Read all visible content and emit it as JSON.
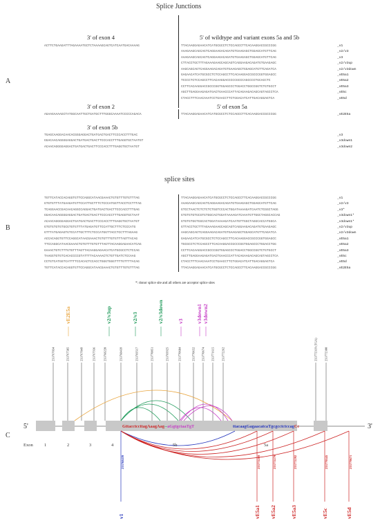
{
  "panelA": {
    "letter": "A",
    "title": "Splice Junctions",
    "h_exon4": "3' of exon 4",
    "h_5prime": "5' of  wildtype and variant exons 5a and 5b",
    "h_exon2": "3' of exon 2",
    "h_exon5a": "5' of exon 5a",
    "h_exon5b": "3' of exon 5b",
    "exon4_seq": "ACTTCTGAAGATTTAGAAAATGCTCTAAAAGCAGTCATCAATGACAAAAG",
    "right_seqs": [
      "TTACAAGGAGAACATCATGCGCCTCTCCAGCCTTCACAAGGACCGCCCGG",
      "AAAGAAGCAGCAGTCAGGAAGACAGATGTGAAGAGCTGGAGCATGTTCAG",
      "AAAGAAGCAGCAGTCAGGAAGACAGATGTGAAGAGCTGGAGCATGTTCAG",
      "CTTACCTGCTTTAGAAAGAAGCAGCAGTCAGGAAGACAGATGTGAAGAGC",
      "AAGCAGCAGTCAGGAAGACAGATGTGAAGAGCTGGAGCATGTTCAGATCA",
      "GAGAACATCATGCGCCTCTCCAGCCTTCACAAGGACCGCCCGGTGGAGCC",
      "TCCCCTCTCCAGCCTTCACAAGGACCCCCGCCCAGCCCCTGCACCTC",
      "CCTTCACAAGGACCGCCCGGTGGAGCCCTGGACCTGGCCGGTCTGTGCCT",
      "AGCTTGAGGAAGAGATGACTGAACCCATTACAGAAGACAGCAGTAGCCTCA",
      "CTACCTTTCAACAAATCCTGAACCTTCTGGACATCATTGACAGGAGTCA"
    ],
    "right_labels": [
      "_v1",
      "_v2/v3",
      "_v3",
      "_v2/v3up",
      "_v2/v3down",
      "_vE5a1",
      "_vE5a2",
      "_vE5a3",
      "_vE5c",
      "_vE5d"
    ],
    "exon2_seq": "AGAAGAAAAGCTATGGCAATTGCTGATGCTTTGGGCAAAATCCCCCAGACA",
    "exon5a_seq": "TTACAAGGAGAACATCATGCGCCTCTCCAGCCTTCACAAGGACCGCCCGG",
    "exon5a_label": "_vE2E5a",
    "exon5b_seqs": [
      "TGAGCAAGGACAACACGGGAGGACTGATGACTGACTTCCCACCTTTGAC",
      "GGACAACAGGGGAGGACTGATGACTGACTTCCCACCTTTGAGGTGCTAATGT",
      "ACAACAGGGGAGGACTGATGACTGACTTCCCACCTTTGAGGTGCTAATGT"
    ],
    "exon5b_labels": [
      "_v3",
      "_v3down1",
      "_v3down2"
    ]
  },
  "panelB": {
    "letter": "B",
    "title": "splice sites",
    "left_seqs": [
      "TGTTCATACCACAGGTGTTCCAGGCATAACGAAACTGTGTTTGTGTTTAG",
      "GTGTGTTTATGAAGATGTTCCATTGCTTTCTCCCATGGTTACCTCCTTTAG",
      "TCAGGAACCGACAACAGGCCAGGACTGATGACTGACTTCCCACCTTTGAG",
      "GGACAACAGGGGAGGACTGATGACTGACTTCCCACCTTTGAGGTGCTAAT",
      "ACAACAGGGGAGGACTGATGACTGACTTCCCACCTTTGAGGTGCTAATGT",
      "GTGTGTGTGTGCGTGTGTTTATGAGATGTTCCATTGCTTTCTCCCATG",
      "GTTTATGAGAGTGTCCATTGCTTTCTCCCATGGTTACCTCCTTTAGAAG",
      "ACCACAGGTGTTCCAGGCATAACGAAACTGTGTTTGTGTTTAGTTACAG",
      "TTCCAGGCATAACGAAACTGTGTTTGTGTTTAGTTACAAGGAGAACATCAG",
      "GAAACTGTCTTTGTGTTTAGTTACAAGGAGAACATCATGCGCCTCTCCAG",
      "TAAGGTGTGTCACACCCCGTATTTTACAAAACTCTGTTGATCTCCAAG",
      "CCTGTCATGGTCATTTTCCACACTCCACCTGGGTGGGTTTTGTTTTACAG",
      "TGTTCATACCACAGGTGTTCCAGGCATAACGAAACTGTGTTTGTGTTTAG"
    ],
    "right_seqs": [
      "TTACAAGGAGAACATCATGCGCCTCTCCAGCCTTCACAAGGACCGCCCGG",
      "AAAGAAGCAGCAGTCAGGAAGACAGATGTGAAGAGCTGGAGCATGTTCAG",
      "GTCCTAACTCTCTCTCTGGTCCCACTGGATAAAAGATCAATCTCGGCTAGG",
      "GTGTGTGTGCGTGTGGCACTGGATAAAAGATCAAATGTTGGCTAGGCACCAG",
      "GTGTGTGGTGGCACTGGATAAAAGATCAATGTTGGCTAGGCACCATGGCA",
      "GTTACCTGCTTTAGAAAGAAGCAGCAGTCAGGAAGACAGATGTGAAGAGC",
      "AAGCAGCAGTCAGGAAGACAGATGTGAAGAGCTGGAGCATGTTCAGATCA",
      "GAGAACATCATGCGCCTCTCCAGCCTTCACAAGGACCGCCCGGTGGAGCC",
      "TGCGCCTCTCCAGCCTTCACAAGGACCGCCCGGTGGAGCCCTGGACCTGG",
      "CCTTCACAAGGACCGCCCGGTGGAGCCCTGGACCTGGCCGGTCTGTGCCT",
      "AGCTTGAGGAAGAGATGACTGAACCCATTACAGAAGACAGCAGTAGCCTCA",
      "CTACCTTTCAACAAATCCTGAACCTTCTGGACATCATTGACAGGAGTCA",
      "TTACAAGGAGAACATCATGCGCCTCTCCAGCCTTCACAAGGACCGCCCGG"
    ],
    "labels": [
      "_v1",
      "_v2/v3",
      "_v3*",
      "_v3down1*",
      "_v3down1*",
      "_v2/v3up",
      "_v2/v3down",
      "_vE5a1",
      "_vE5a2",
      "_vE5a3",
      "_vE5c",
      "_vE5d",
      "_vE2E5a"
    ],
    "footnote": "*: donor splice site and all others are acceptor splice sites"
  },
  "panelC": {
    "letter": "C",
    "five_prime": "5'",
    "three_prime": "3'",
    "exon_label": "Exon",
    "exon_numbers": [
      "1",
      "2",
      "3",
      "4",
      "5b",
      "5a"
    ],
    "top_variants": [
      {
        "name": "vE2E5a",
        "color": "#e8a33a"
      },
      {
        "name": "v2/v3up",
        "color": "#1f9a5a"
      },
      {
        "name": "v2/v3",
        "color": "#1f9a5a"
      },
      {
        "name": "v2/v3down",
        "color": "#1f9a5a"
      },
      {
        "name": "v3",
        "color": "#c53cc5"
      },
      {
        "name": "v3down1",
        "color": "#c53cc5"
      },
      {
        "name": "v3down2",
        "color": "#c53cc5"
      }
    ],
    "top_coords": [
      "233767034",
      "233767585",
      "233767849",
      "233767936",
      "233768220",
      "233768439",
      "233769517",
      "233770051",
      "233769925",
      "233770684",
      "233770652",
      "233770674",
      "233771615",
      "233772262",
      "233772319 (TGA)",
      "233772300"
    ],
    "bottom_variants": [
      {
        "name": "v1",
        "color": "#2233bb"
      },
      {
        "name": "vE5a1",
        "color": "#cc2222"
      },
      {
        "name": "vE5a2",
        "color": "#cc2222"
      },
      {
        "name": "vE5a3",
        "color": "#cc2222"
      },
      {
        "name": "vE5c",
        "color": "#cc2222"
      },
      {
        "name": "vE5d",
        "color": "#cc2222"
      }
    ],
    "bottom_coords": [
      "233768439",
      "233772269",
      "233772279",
      "233772292",
      "233779545",
      "233779671"
    ],
    "seq_5b_parts": [
      {
        "t": "GttacctccttagAaagAag",
        "c": "#cc2222"
      },
      {
        "t": "--",
        "c": "#1f9a5a"
      },
      {
        "t": "aGgtgctaaTgT",
        "c": "#c53cc5"
      }
    ],
    "seq_5a_parts": [
      {
        "t": "ttacaag",
        "c": "#2233bb"
      },
      {
        "t": "Gagaacatca",
        "c": "#2233bb"
      },
      {
        "t": "Tgcgcctctccag",
        "c": "#2233bb"
      },
      {
        "t": "Cc",
        "c": "#cc2222"
      }
    ]
  }
}
